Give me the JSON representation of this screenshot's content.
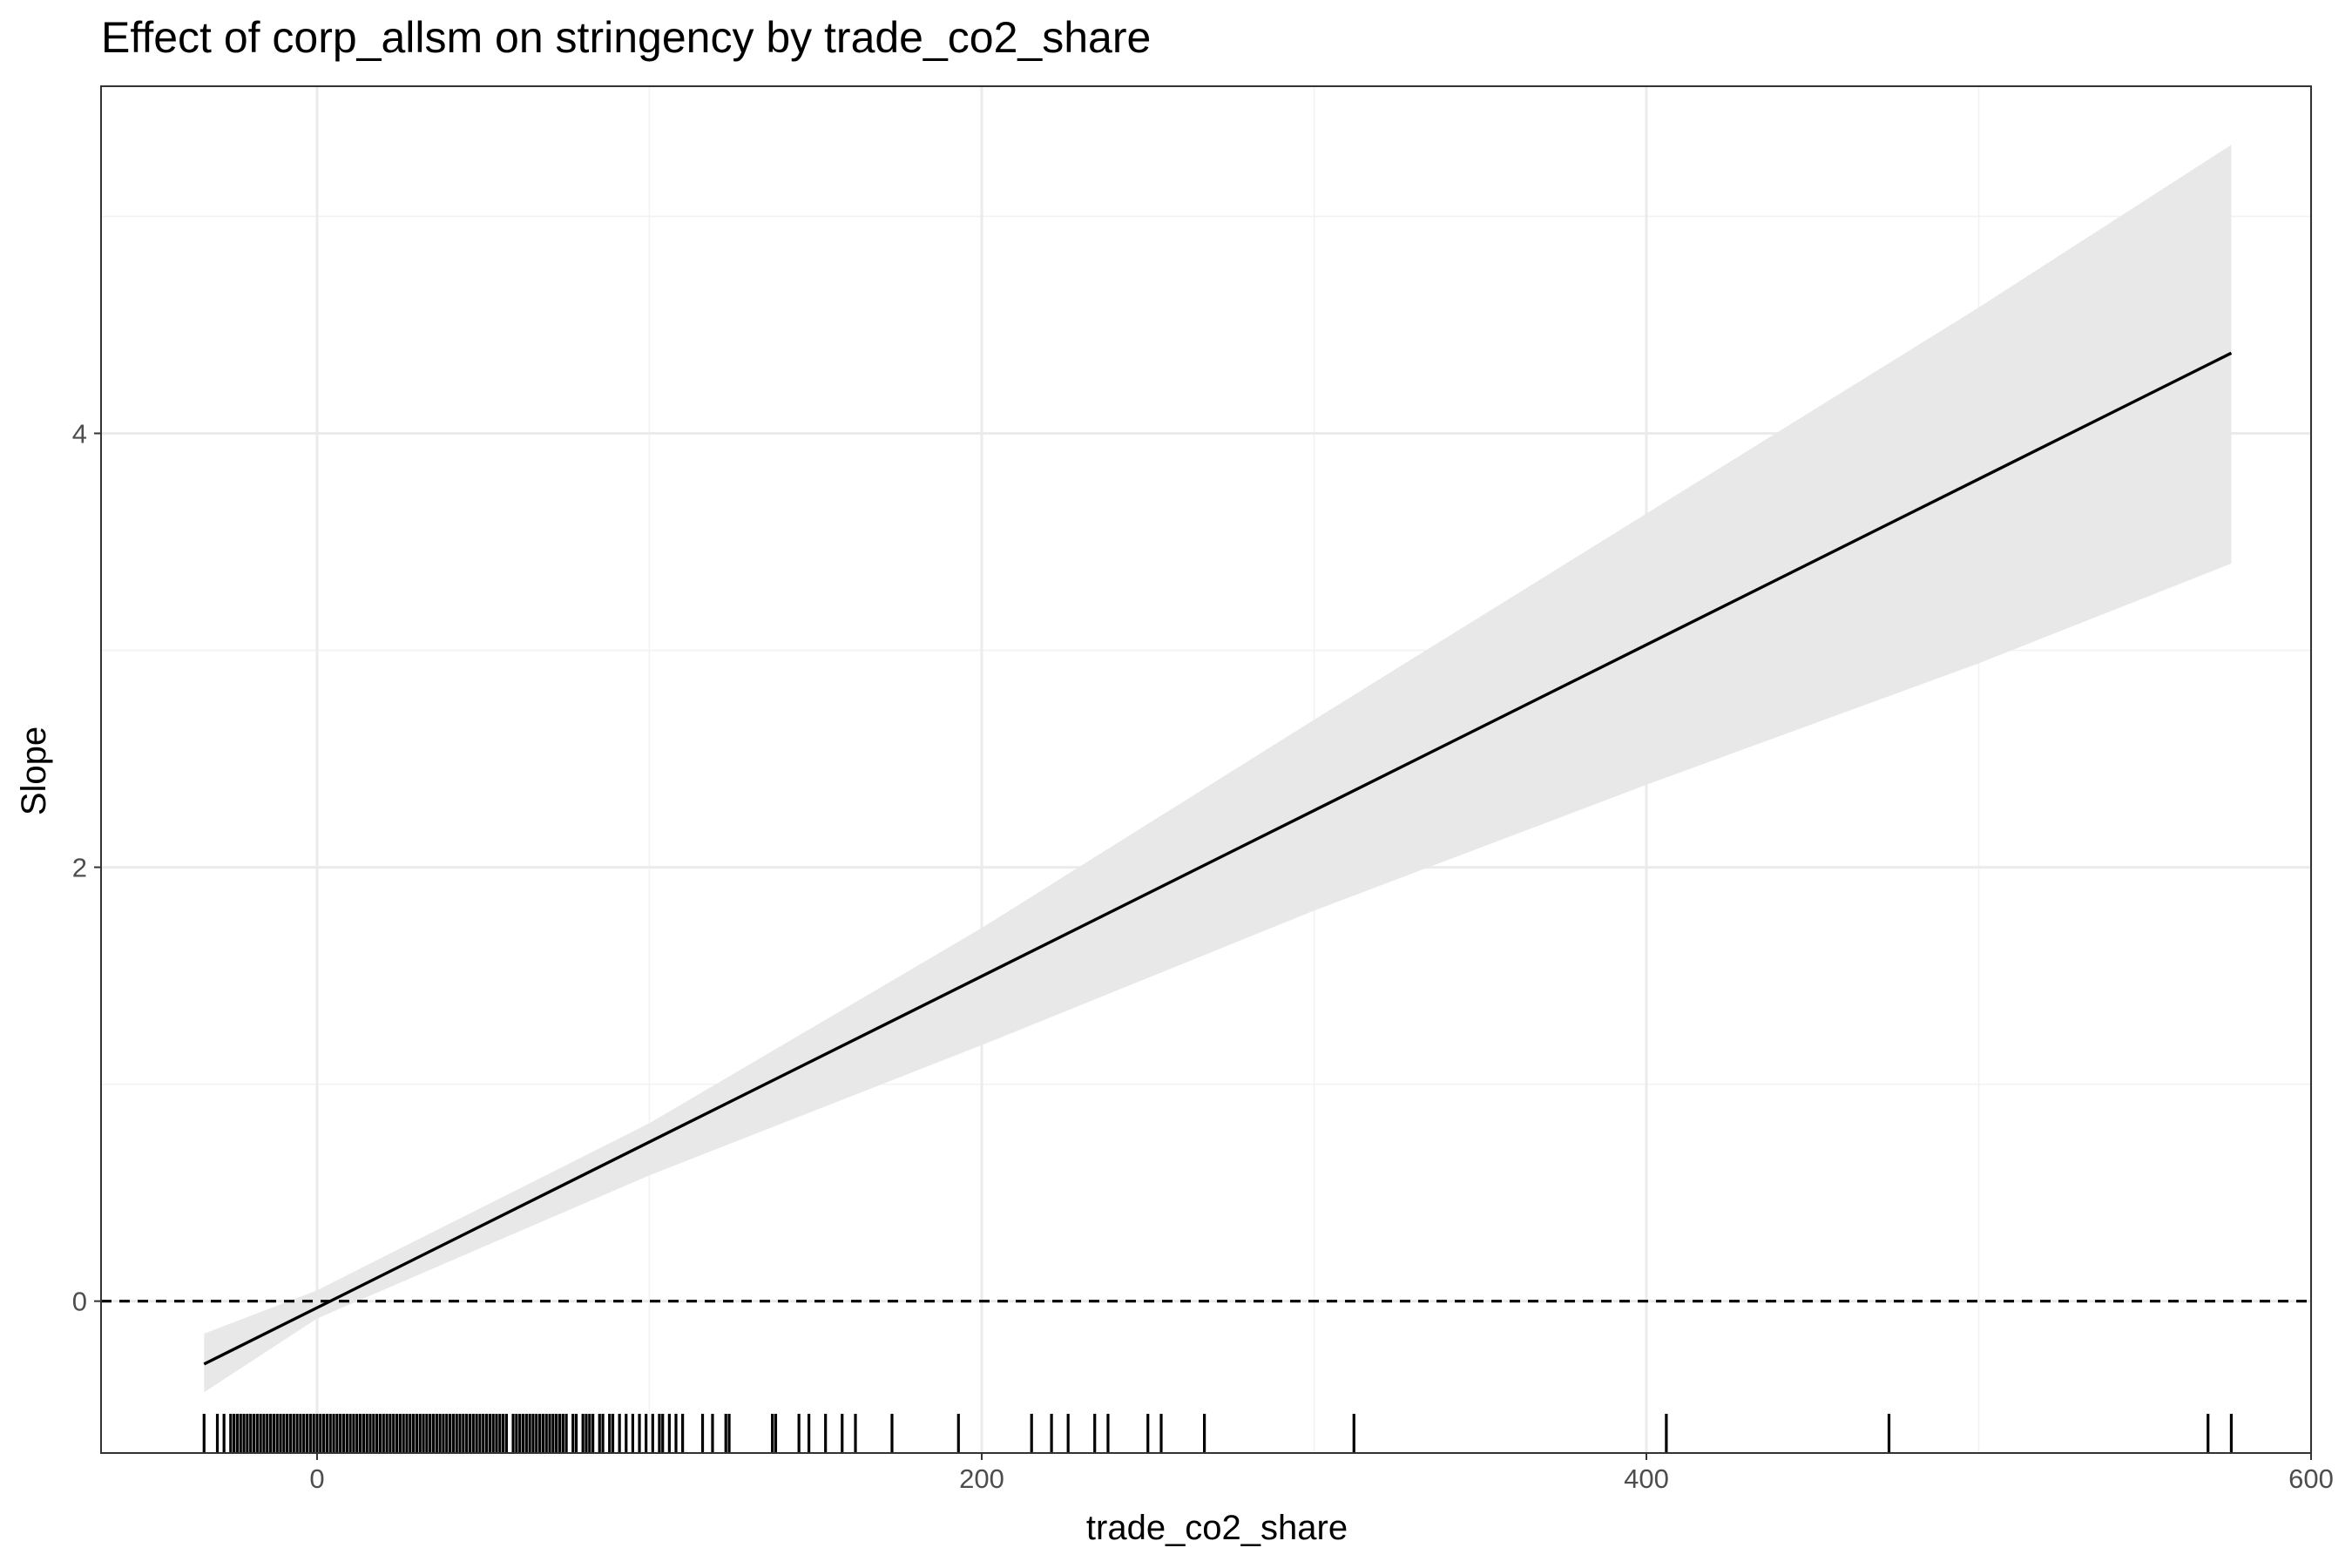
{
  "chart_data": {
    "type": "line",
    "title": "Effect of corp_allsm on stringency by trade_co2_share",
    "xlabel": "trade_co2_share",
    "ylabel": "Slope",
    "xlim": [
      -65,
      600
    ],
    "ylim": [
      -0.7,
      5.6
    ],
    "x_ticks": [
      0,
      200,
      400,
      600
    ],
    "x_tick_labels": [
      "0",
      "200",
      "400",
      "600"
    ],
    "y_ticks": [
      0,
      2,
      4
    ],
    "y_tick_labels": [
      "0",
      "2",
      "4"
    ],
    "grid": true,
    "reference_line": {
      "y": 0,
      "style": "dashed"
    },
    "line": {
      "x": [
        -34,
        576
      ],
      "y": [
        -0.29,
        4.37
      ]
    },
    "confidence_band": {
      "x": [
        -34,
        0,
        100,
        200,
        300,
        400,
        500,
        576
      ],
      "lower": [
        -0.42,
        -0.08,
        0.58,
        1.18,
        1.8,
        2.38,
        2.94,
        3.4
      ],
      "upper": [
        -0.15,
        0.05,
        0.82,
        1.72,
        2.68,
        3.63,
        4.58,
        5.33
      ]
    },
    "rug_x": [
      -34,
      -30,
      -28,
      -26,
      -25,
      -24,
      -23,
      -22,
      -21,
      -20,
      -19,
      -18,
      -17,
      -16,
      -15,
      -14,
      -13,
      -12,
      -11,
      -10,
      -9,
      -8,
      -7,
      -6,
      -5,
      -4,
      -3,
      -2,
      -1,
      0,
      1,
      2,
      3,
      4,
      5,
      6,
      7,
      8,
      9,
      10,
      11,
      12,
      13,
      14,
      15,
      16,
      17,
      18,
      19,
      20,
      21,
      22,
      23,
      24,
      25,
      26,
      27,
      28,
      29,
      30,
      31,
      32,
      33,
      34,
      35,
      36,
      37,
      38,
      39,
      40,
      41,
      42,
      43,
      44,
      45,
      46,
      47,
      48,
      49,
      50,
      51,
      52,
      53,
      54,
      55,
      56,
      57,
      59,
      60,
      61,
      62,
      63,
      64,
      65,
      66,
      67,
      68,
      69,
      70,
      71,
      72,
      73,
      74,
      75,
      77,
      78,
      80,
      81,
      82,
      83,
      85,
      86,
      88,
      89,
      91,
      93,
      95,
      97,
      99,
      101,
      103,
      104,
      106,
      108,
      110,
      116,
      119,
      123,
      124,
      137,
      138,
      145,
      148,
      153,
      158,
      162,
      173,
      193,
      215,
      221,
      226,
      234,
      238,
      250,
      254,
      267,
      312,
      406,
      473,
      569,
      576
    ]
  }
}
